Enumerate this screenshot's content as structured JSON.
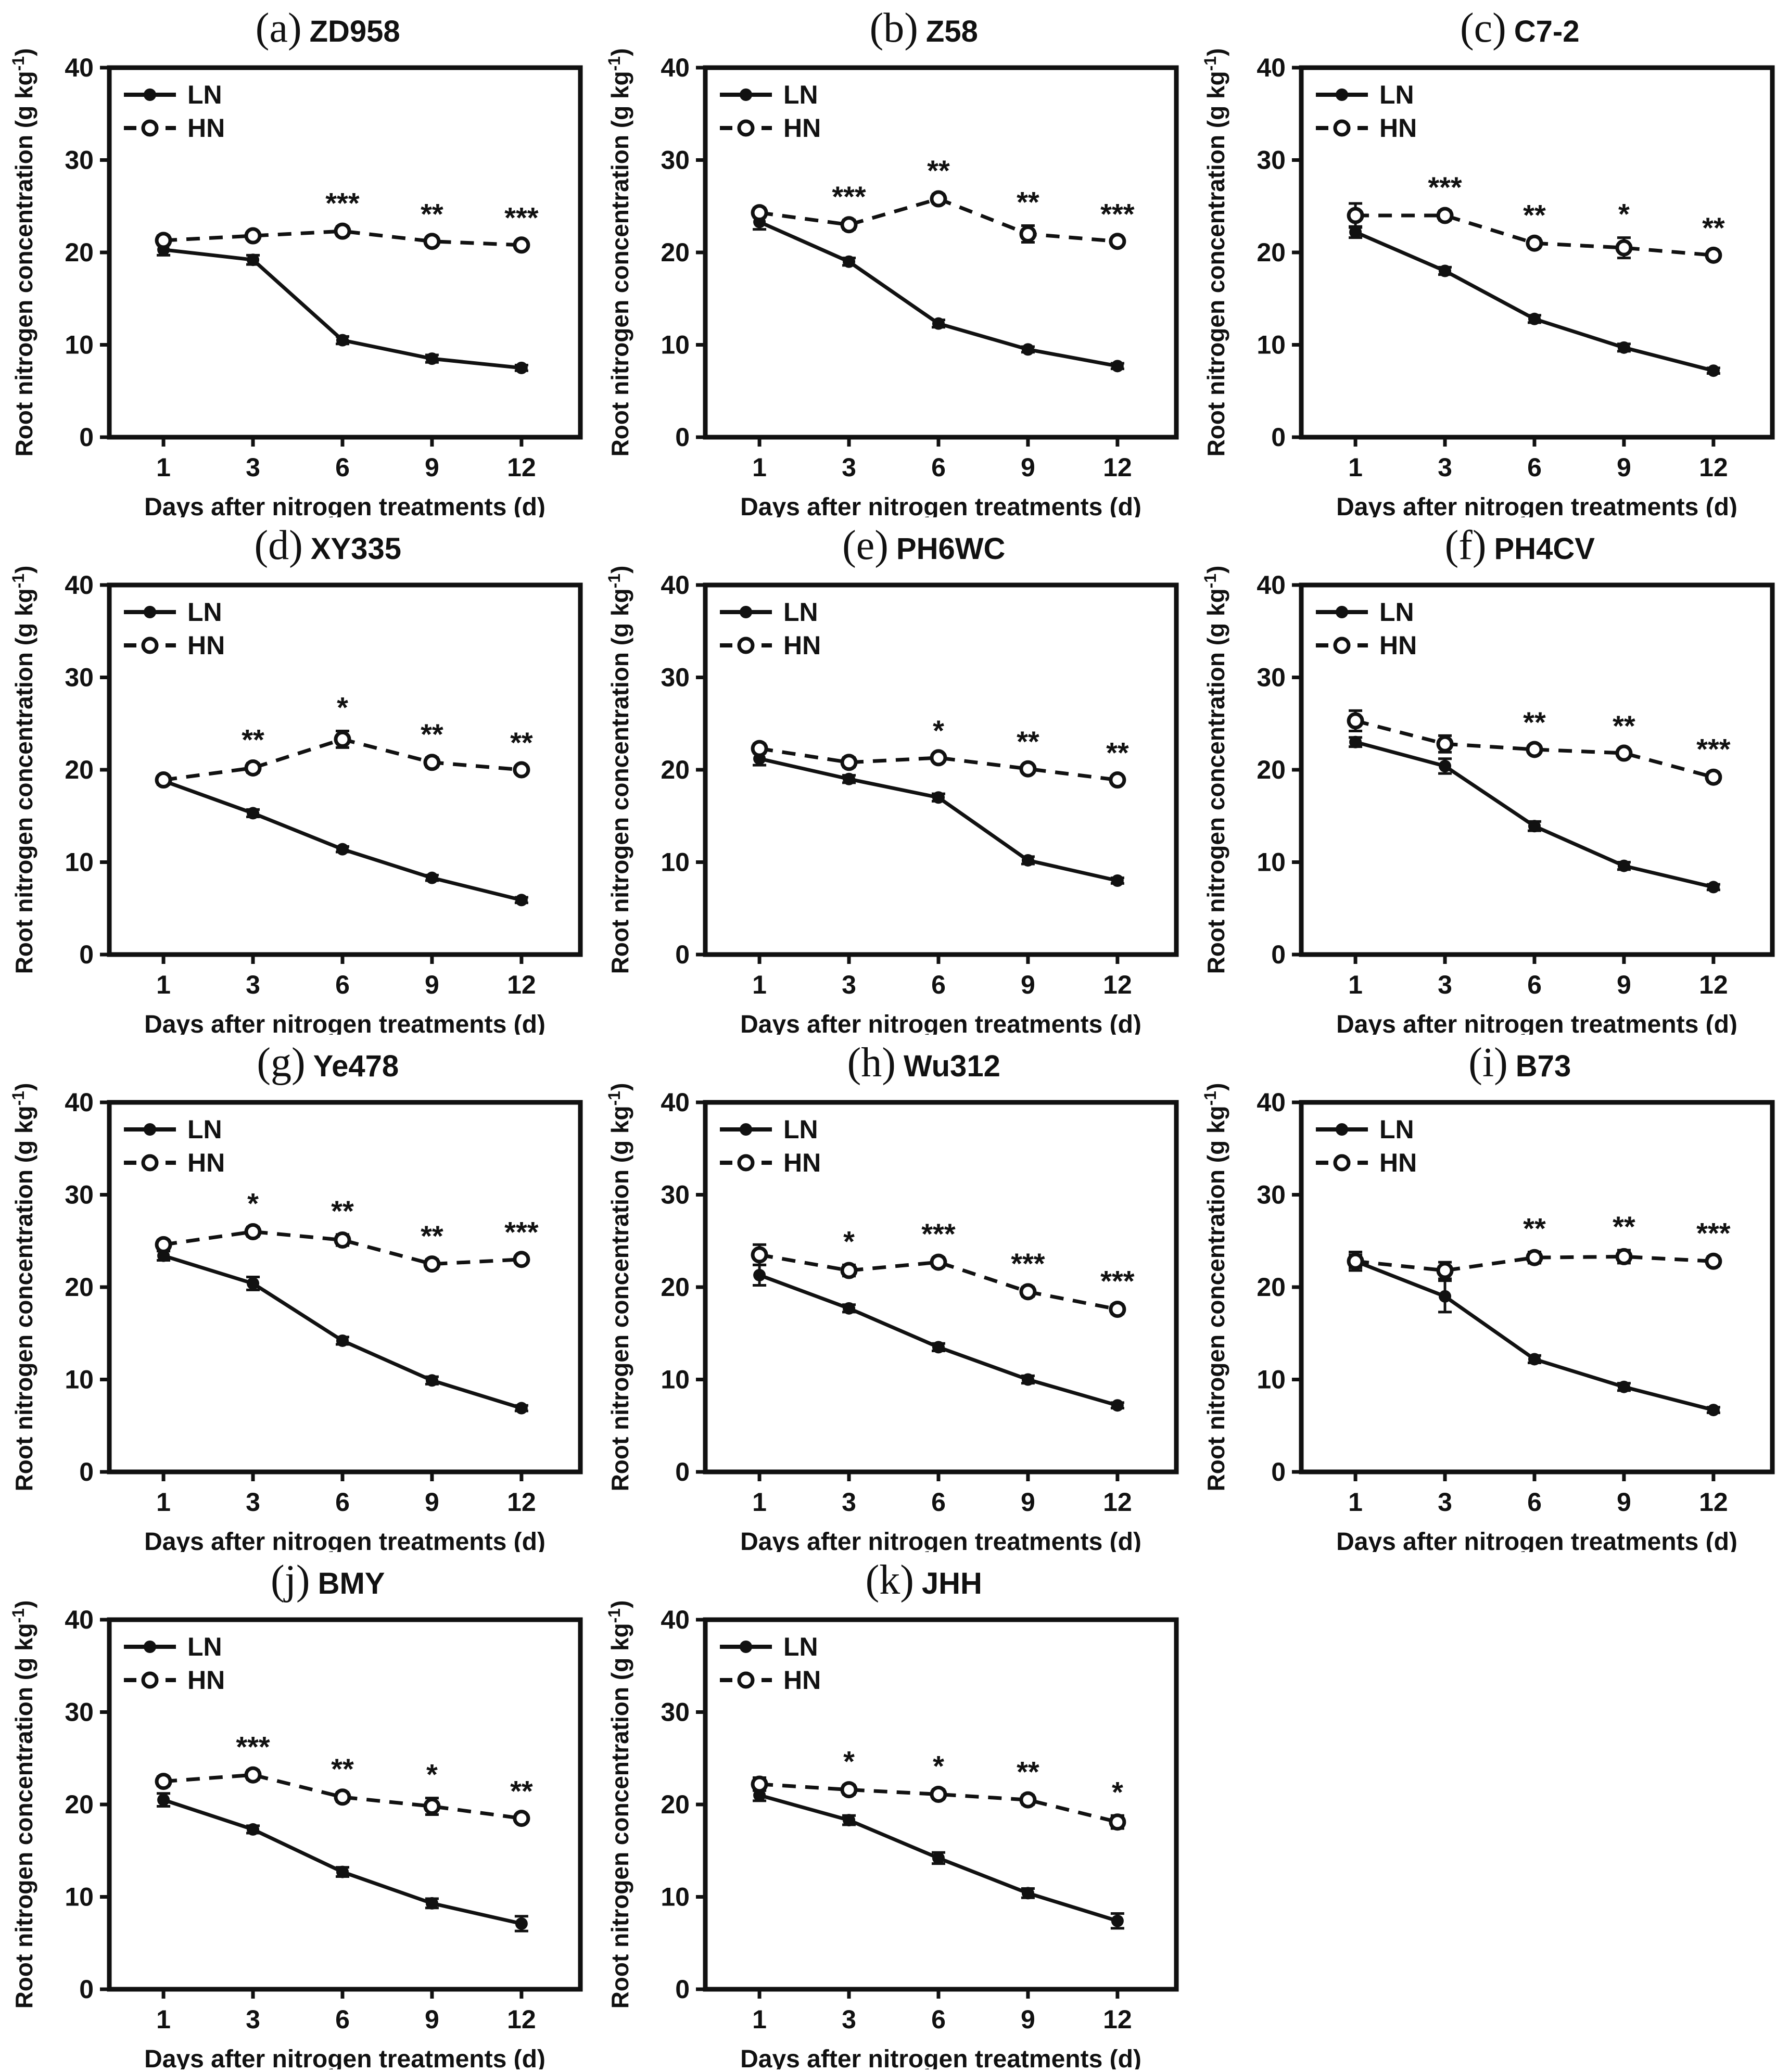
{
  "figure": {
    "ylabel": "Root nitrogen concentration (g kg⁻¹)",
    "ylabel_prefix": "Root nitrogen concentration (g kg",
    "ylabel_superscript": "-1",
    "ylabel_suffix": ")",
    "xlabel": "Days after nitrogen treatments (d)",
    "legend": [
      {
        "name": "LN",
        "line": "solid",
        "marker": "filled-circle"
      },
      {
        "name": "HN",
        "line": "dashed",
        "marker": "open-circle"
      }
    ],
    "axis": {
      "ylim": [
        0,
        40
      ],
      "yticks": [
        0,
        10,
        20,
        30,
        40
      ],
      "xticks": [
        1,
        3,
        6,
        9,
        12
      ]
    },
    "colors": {
      "foreground": "#111111",
      "background": "#ffffff"
    }
  },
  "chart_data": [
    {
      "type": "line",
      "panel_label": "(a)",
      "title": "ZD958",
      "x": [
        1,
        3,
        6,
        9,
        12
      ],
      "series": [
        {
          "name": "LN",
          "values": [
            20.3,
            19.2,
            10.5,
            8.5,
            7.5
          ],
          "errors": [
            0.6,
            0.5,
            0.4,
            0.4,
            0.3
          ]
        },
        {
          "name": "HN",
          "values": [
            21.3,
            21.8,
            22.3,
            21.2,
            20.8
          ],
          "errors": [
            0.5,
            0.4,
            0.5,
            0.4,
            0.4
          ]
        }
      ],
      "significance": [
        "",
        "",
        "***",
        "**",
        "***"
      ]
    },
    {
      "type": "line",
      "panel_label": "(b)",
      "title": "Z58",
      "x": [
        1,
        3,
        6,
        9,
        12
      ],
      "series": [
        {
          "name": "LN",
          "values": [
            23.3,
            19.0,
            12.3,
            9.5,
            7.7
          ],
          "errors": [
            0.8,
            0.4,
            0.4,
            0.3,
            0.3
          ]
        },
        {
          "name": "HN",
          "values": [
            24.3,
            23.0,
            25.8,
            22.0,
            21.2
          ],
          "errors": [
            0.5,
            0.5,
            0.5,
            0.9,
            0.4
          ]
        }
      ],
      "significance": [
        "",
        "***",
        "**",
        "**",
        "***"
      ]
    },
    {
      "type": "line",
      "panel_label": "(c)",
      "title": "C7-2",
      "x": [
        1,
        3,
        6,
        9,
        12
      ],
      "series": [
        {
          "name": "LN",
          "values": [
            22.2,
            18.0,
            12.8,
            9.7,
            7.2
          ],
          "errors": [
            0.6,
            0.4,
            0.4,
            0.4,
            0.3
          ]
        },
        {
          "name": "HN",
          "values": [
            24.0,
            24.0,
            21.0,
            20.5,
            19.7
          ],
          "errors": [
            1.3,
            0.5,
            0.5,
            1.1,
            0.4
          ]
        }
      ],
      "significance": [
        "",
        "***",
        "**",
        "*",
        "**"
      ]
    },
    {
      "type": "line",
      "panel_label": "(d)",
      "title": "XY335",
      "x": [
        1,
        3,
        6,
        9,
        12
      ],
      "series": [
        {
          "name": "LN",
          "values": [
            18.8,
            15.3,
            11.4,
            8.3,
            5.9
          ],
          "errors": [
            0.4,
            0.4,
            0.3,
            0.3,
            0.3
          ]
        },
        {
          "name": "HN",
          "values": [
            18.9,
            20.2,
            23.3,
            20.8,
            20.0
          ],
          "errors": [
            0.4,
            0.5,
            0.9,
            0.5,
            0.4
          ]
        }
      ],
      "significance": [
        "",
        "**",
        "*",
        "**",
        "**"
      ]
    },
    {
      "type": "line",
      "panel_label": "(e)",
      "title": "PH6WC",
      "x": [
        1,
        3,
        6,
        9,
        12
      ],
      "series": [
        {
          "name": "LN",
          "values": [
            21.2,
            19.0,
            17.0,
            10.2,
            8.0
          ],
          "errors": [
            0.7,
            0.4,
            0.4,
            0.4,
            0.3
          ]
        },
        {
          "name": "HN",
          "values": [
            22.3,
            20.8,
            21.3,
            20.1,
            18.9
          ],
          "errors": [
            0.5,
            0.5,
            0.4,
            0.4,
            0.4
          ]
        }
      ],
      "significance": [
        "",
        "",
        "*",
        "**",
        "**"
      ]
    },
    {
      "type": "line",
      "panel_label": "(f)",
      "title": "PH4CV",
      "x": [
        1,
        3,
        6,
        9,
        12
      ],
      "series": [
        {
          "name": "LN",
          "values": [
            23.0,
            20.4,
            13.9,
            9.6,
            7.3
          ],
          "errors": [
            0.5,
            0.8,
            0.5,
            0.4,
            0.3
          ]
        },
        {
          "name": "HN",
          "values": [
            25.3,
            22.8,
            22.2,
            21.8,
            19.2
          ],
          "errors": [
            1.1,
            0.9,
            0.4,
            0.4,
            0.5
          ]
        }
      ],
      "significance": [
        "",
        "",
        "**",
        "**",
        "***"
      ]
    },
    {
      "type": "line",
      "panel_label": "(g)",
      "title": "Ye478",
      "x": [
        1,
        3,
        6,
        9,
        12
      ],
      "series": [
        {
          "name": "LN",
          "values": [
            23.4,
            20.4,
            14.2,
            9.9,
            6.9
          ],
          "errors": [
            0.5,
            0.7,
            0.4,
            0.4,
            0.3
          ]
        },
        {
          "name": "HN",
          "values": [
            24.6,
            26.0,
            25.1,
            22.5,
            23.0
          ],
          "errors": [
            0.5,
            0.5,
            0.6,
            0.5,
            0.4
          ]
        }
      ],
      "significance": [
        "",
        "*",
        "**",
        "**",
        "***"
      ]
    },
    {
      "type": "line",
      "panel_label": "(h)",
      "title": "Wu312",
      "x": [
        1,
        3,
        6,
        9,
        12
      ],
      "series": [
        {
          "name": "LN",
          "values": [
            21.3,
            17.7,
            13.5,
            10.0,
            7.2
          ],
          "errors": [
            1.1,
            0.4,
            0.4,
            0.4,
            0.3
          ]
        },
        {
          "name": "HN",
          "values": [
            23.5,
            21.8,
            22.7,
            19.5,
            17.6
          ],
          "errors": [
            1.1,
            0.6,
            0.5,
            0.5,
            0.5
          ]
        }
      ],
      "significance": [
        "",
        "*",
        "***",
        "***",
        "***"
      ]
    },
    {
      "type": "line",
      "panel_label": "(i)",
      "title": "B73",
      "x": [
        1,
        3,
        6,
        9,
        12
      ],
      "series": [
        {
          "name": "LN",
          "values": [
            22.8,
            19.0,
            12.2,
            9.2,
            6.7
          ],
          "errors": [
            1.0,
            1.7,
            0.4,
            0.4,
            0.3
          ]
        },
        {
          "name": "HN",
          "values": [
            22.8,
            21.8,
            23.2,
            23.3,
            22.8
          ],
          "errors": [
            0.7,
            0.9,
            0.6,
            0.7,
            0.5
          ]
        }
      ],
      "significance": [
        "",
        "",
        "**",
        "**",
        "***"
      ]
    },
    {
      "type": "line",
      "panel_label": "(j)",
      "title": "BMY",
      "x": [
        1,
        3,
        6,
        9,
        12
      ],
      "series": [
        {
          "name": "LN",
          "values": [
            20.5,
            17.3,
            12.7,
            9.3,
            7.1
          ],
          "errors": [
            0.7,
            0.4,
            0.5,
            0.5,
            0.8
          ]
        },
        {
          "name": "HN",
          "values": [
            22.5,
            23.2,
            20.8,
            19.8,
            18.5
          ],
          "errors": [
            0.5,
            0.5,
            0.5,
            0.9,
            0.4
          ]
        }
      ],
      "significance": [
        "",
        "***",
        "**",
        "*",
        "**"
      ]
    },
    {
      "type": "line",
      "panel_label": "(k)",
      "title": "JHH",
      "x": [
        1,
        3,
        6,
        9,
        12
      ],
      "series": [
        {
          "name": "LN",
          "values": [
            21.0,
            18.3,
            14.2,
            10.4,
            7.4
          ],
          "errors": [
            0.6,
            0.5,
            0.6,
            0.5,
            0.8
          ]
        },
        {
          "name": "HN",
          "values": [
            22.2,
            21.6,
            21.1,
            20.5,
            18.1
          ],
          "errors": [
            0.7,
            0.5,
            0.5,
            0.5,
            0.7
          ]
        }
      ],
      "significance": [
        "",
        "*",
        "*",
        "**",
        "*"
      ]
    }
  ]
}
